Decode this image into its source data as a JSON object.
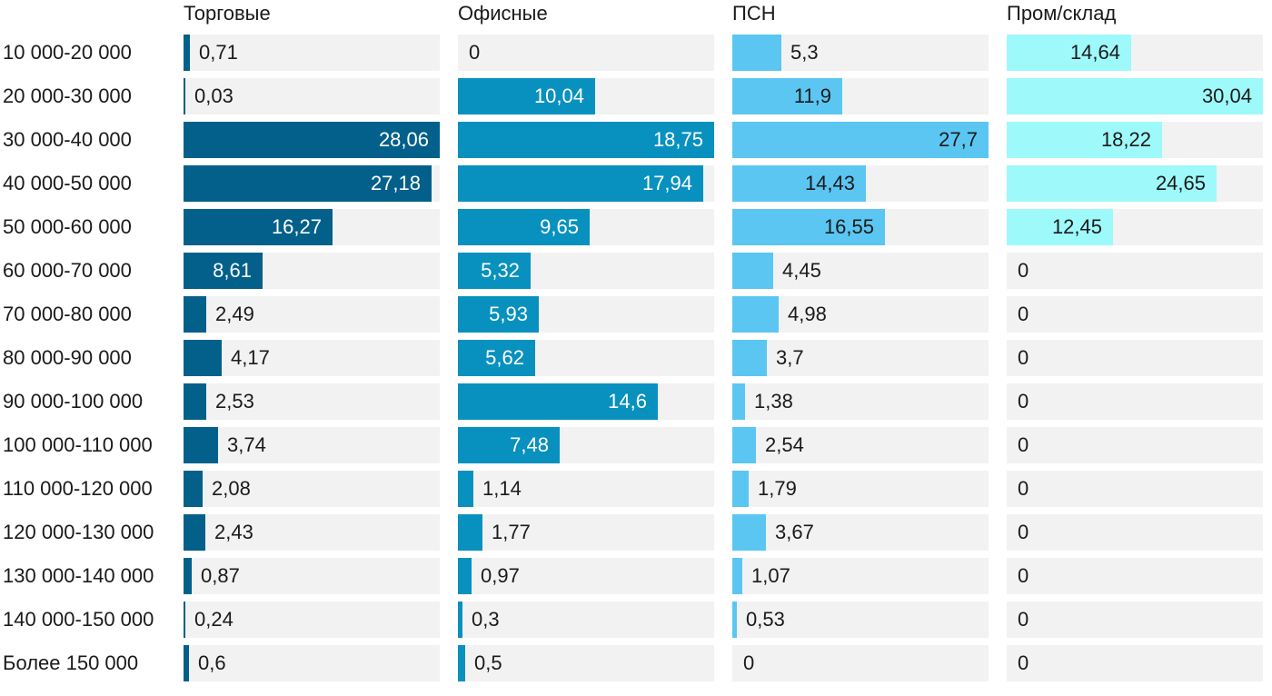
{
  "chart_data": {
    "type": "bar",
    "orientation": "horizontal",
    "layout": "small-multiples",
    "categories": [
      "10 000-20 000",
      "20 000-30 000",
      "30 000-40 000",
      "40 000-50 000",
      "50 000-60 000",
      "60 000-70 000",
      "70 000-80 000",
      "80 000-90 000",
      "90 000-100 000",
      "100 000-110 000",
      "110 000-120 000",
      "120 000-130 000",
      "130 000-140 000",
      "140 000-150 000",
      "Более 150 000"
    ],
    "series": [
      {
        "name": "Торговые",
        "color": "#03608a",
        "xlim": [
          0,
          28.06
        ],
        "label_color": "light",
        "values": [
          0.71,
          0.03,
          28.06,
          27.18,
          16.27,
          8.61,
          2.49,
          4.17,
          2.53,
          3.74,
          2.08,
          2.43,
          0.87,
          0.24,
          0.6
        ],
        "labels": [
          "0,71",
          "0,03",
          "28,06",
          "27,18",
          "16,27",
          "8,61",
          "2,49",
          "4,17",
          "2,53",
          "3,74",
          "2,08",
          "2,43",
          "0,87",
          "0,24",
          "0,6"
        ]
      },
      {
        "name": "Офисные",
        "color": "#0891bf",
        "xlim": [
          0,
          18.75
        ],
        "label_color": "light",
        "values": [
          0,
          10.04,
          18.75,
          17.94,
          9.65,
          5.32,
          5.93,
          5.62,
          14.6,
          7.48,
          1.14,
          1.77,
          0.97,
          0.3,
          0.5
        ],
        "labels": [
          "0",
          "10,04",
          "18,75",
          "17,94",
          "9,65",
          "5,32",
          "5,93",
          "5,62",
          "14,6",
          "7,48",
          "1,14",
          "1,77",
          "0,97",
          "0,3",
          "0,5"
        ]
      },
      {
        "name": "ПСН",
        "color": "#5bc6f2",
        "xlim": [
          0,
          27.7
        ],
        "label_color": "dark",
        "values": [
          5.3,
          11.9,
          27.7,
          14.43,
          16.55,
          4.45,
          4.98,
          3.7,
          1.38,
          2.54,
          1.79,
          3.67,
          1.07,
          0.53,
          0
        ],
        "labels": [
          "5,3",
          "11,9",
          "27,7",
          "14,43",
          "16,55",
          "4,45",
          "4,98",
          "3,7",
          "1,38",
          "2,54",
          "1,79",
          "3,67",
          "1,07",
          "0,53",
          "0"
        ]
      },
      {
        "name": "Пром/склад",
        "color": "#9ef9fb",
        "xlim": [
          0,
          30.04
        ],
        "label_color": "dark",
        "values": [
          14.64,
          30.04,
          18.22,
          24.65,
          12.45,
          0,
          0,
          0,
          0,
          0,
          0,
          0,
          0,
          0,
          0
        ],
        "labels": [
          "14,64",
          "30,04",
          "18,22",
          "24,65",
          "12,45",
          "0",
          "0",
          "0",
          "0",
          "0",
          "0",
          "0",
          "0",
          "0",
          "0"
        ]
      }
    ],
    "title": "",
    "xlabel": "",
    "ylabel": "",
    "grid": false,
    "legend": "none"
  }
}
